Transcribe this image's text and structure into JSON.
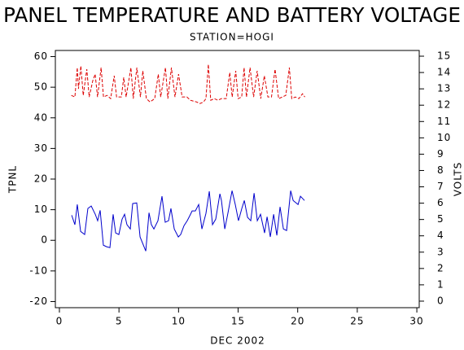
{
  "chart_data": {
    "type": "line",
    "title": "PANEL TEMPERATURE AND BATTERY VOLTAGE",
    "subtitle": "STATION=HOGI",
    "xlabel": "DEC 2002",
    "ylabel": "TPNL",
    "y2label": "VOLTS",
    "xlim": [
      -0.34,
      30.2
    ],
    "xticks": [
      0,
      5,
      10,
      15,
      20,
      25,
      30
    ],
    "ylim": [
      -22,
      62
    ],
    "yticks": [
      -20,
      -10,
      0,
      10,
      20,
      30,
      40,
      50,
      60
    ],
    "y2lim": [
      -0.4,
      15.35
    ],
    "y2ticks": [
      0,
      1,
      2,
      3,
      4,
      5,
      6,
      7,
      8,
      9,
      10,
      11,
      12,
      13,
      14,
      15
    ],
    "series": [
      {
        "name": "TPNL",
        "color": "#0000cc",
        "dashed": false,
        "x": [
          1.03,
          1.3,
          1.5,
          1.78,
          2.12,
          2.39,
          2.67,
          3.01,
          3.21,
          3.42,
          3.69,
          3.96,
          4.24,
          4.51,
          4.72,
          4.99,
          5.26,
          5.47,
          5.67,
          5.95,
          6.15,
          6.49,
          6.77,
          7.25,
          7.52,
          7.72,
          7.93,
          8.27,
          8.61,
          8.88,
          9.16,
          9.36,
          9.64,
          9.98,
          10.18,
          10.46,
          10.73,
          10.94,
          11.14,
          11.41,
          11.69,
          11.96,
          12.3,
          12.58,
          12.85,
          13.12,
          13.47,
          13.6,
          13.88,
          14.15,
          14.49,
          14.76,
          15.03,
          15.31,
          15.52,
          15.79,
          16.06,
          16.34,
          16.61,
          16.88,
          17.22,
          17.43,
          17.7,
          17.98,
          18.25,
          18.52,
          18.8,
          19.07,
          19.41,
          19.62,
          20.03,
          20.23,
          20.57
        ],
        "values": [
          8.2,
          5.1,
          11.7,
          2.9,
          1.9,
          10.4,
          11.2,
          8.5,
          6.4,
          9.8,
          -1.6,
          -2.1,
          -2.4,
          8.5,
          2.4,
          1.9,
          6.9,
          8.5,
          5.1,
          3.7,
          12,
          12.2,
          1.1,
          -3.5,
          9,
          5.1,
          3.7,
          6.4,
          14.4,
          5.9,
          6.4,
          10.4,
          3.7,
          1.1,
          1.9,
          4.8,
          6.4,
          8,
          9.6,
          9.6,
          11.7,
          3.7,
          8.8,
          16,
          5.1,
          6.9,
          15.2,
          13,
          3.7,
          9,
          16.2,
          11.7,
          6.4,
          10.4,
          13,
          7.5,
          6.4,
          15.4,
          6.4,
          8.5,
          2.4,
          7.7,
          1.1,
          8.5,
          1.6,
          10.9,
          3.7,
          3.2,
          16.2,
          13,
          11.7,
          14.4,
          13
        ]
      },
      {
        "name": "VOLTS",
        "color": "#dd0000",
        "dashed": true,
        "axis": "y2",
        "x": [
          1,
          1.3,
          1.5,
          1.6,
          1.8,
          2,
          2.3,
          2.5,
          2.8,
          3,
          3.2,
          3.5,
          3.7,
          4,
          4.3,
          4.6,
          4.8,
          5.2,
          5.4,
          5.6,
          6,
          6.2,
          6.5,
          6.8,
          7,
          7.3,
          7.6,
          8,
          8.3,
          8.5,
          8.9,
          9.1,
          9.4,
          9.7,
          10,
          10.3,
          10.7,
          11,
          11.5,
          11.8,
          12.1,
          12.3,
          12.5,
          12.7,
          13,
          13.3,
          13.6,
          14,
          14.3,
          14.5,
          14.8,
          15,
          15.3,
          15.5,
          15.7,
          16,
          16.3,
          16.6,
          16.9,
          17.2,
          17.5,
          17.8,
          18.1,
          18.4,
          18.7,
          19,
          19.3,
          19.5,
          19.8,
          20.1,
          20.4,
          20.6
        ],
        "values": [
          12.6,
          12.5,
          14.3,
          13,
          14.4,
          12.6,
          14.2,
          12.5,
          13.5,
          13.9,
          12.5,
          14.3,
          12.5,
          12.6,
          12.4,
          13.8,
          12.5,
          12.5,
          13.7,
          12.5,
          14.3,
          12.4,
          14.3,
          12.5,
          14.1,
          12.4,
          12.2,
          12.4,
          13.9,
          12.5,
          14.3,
          12.4,
          14.3,
          12.5,
          13.9,
          12.5,
          12.5,
          12.3,
          12.2,
          12.1,
          12.2,
          12.4,
          14.5,
          12.3,
          12.4,
          12.3,
          12.4,
          12.4,
          14,
          12.5,
          14.1,
          12.4,
          12.5,
          14.3,
          12.5,
          14.3,
          12.5,
          14.1,
          12.4,
          13.8,
          12.5,
          12.5,
          14.2,
          12.4,
          12.5,
          12.6,
          14.3,
          12.4,
          12.5,
          12.4,
          12.7,
          12.5
        ]
      }
    ]
  }
}
